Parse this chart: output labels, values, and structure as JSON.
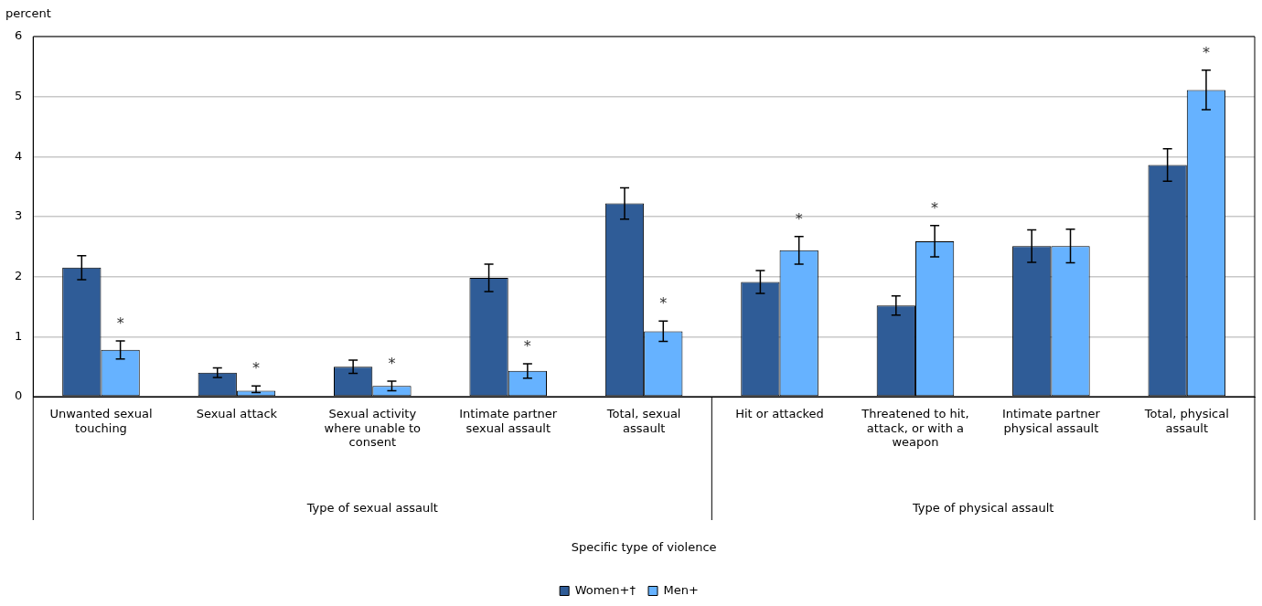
{
  "chart_data": {
    "type": "bar",
    "ylabel": "percent",
    "categories": [
      "Unwanted sexual touching",
      "Sexual attack",
      "Sexual activity where unable to consent",
      "Intimate partner sexual assault",
      "Total, sexual assault",
      "Hit or attacked",
      "Threatened to hit, attack, or with a weapon",
      "Intimate partner physical assault",
      "Total, physical assault"
    ],
    "series": [
      {
        "name": "Women+†",
        "color": "#2f5c97",
        "values": [
          2.15,
          0.4,
          0.5,
          1.98,
          3.22,
          1.91,
          1.52,
          2.51,
          3.86
        ],
        "errors": [
          0.2,
          0.08,
          0.11,
          0.23,
          0.26,
          0.19,
          0.16,
          0.27,
          0.27
        ]
      },
      {
        "name": "Men+",
        "color": "#66b2ff",
        "values": [
          0.78,
          0.1,
          0.18,
          0.43,
          1.09,
          2.44,
          2.59,
          2.51,
          5.11
        ],
        "errors": [
          0.15,
          [
            0.07,
            0.18
          ],
          0.08,
          0.12,
          0.17,
          0.23,
          0.26,
          0.28,
          0.33
        ]
      }
    ],
    "ylim": [
      0,
      6
    ],
    "yticks": [
      0,
      1,
      2,
      3,
      4,
      5,
      6
    ],
    "grid": "y",
    "legend": "bottom",
    "annotations": [
      {
        "text": "*",
        "x": "Unwanted sexual touching",
        "y": 0.78
      },
      {
        "text": "*",
        "x": "Sexual attack",
        "y": 0.1
      },
      {
        "text": "*",
        "x": "Sexual activity where unable to consent",
        "y": 0.18
      },
      {
        "text": "*",
        "x": "Intimate partner sexual assault",
        "y": 0.43
      },
      {
        "text": "*",
        "x": "Total, sexual assault",
        "y": 1.09
      },
      {
        "text": "*",
        "x": "Hit or attacked",
        "y": 2.44
      },
      {
        "text": "*",
        "x": "Threatened to hit, attack, or with a weapon",
        "y": 2.59
      },
      {
        "text": "*",
        "x": "Total, physical assault",
        "y": 5.11
      },
      "Type of sexual assault",
      "Type of physical assault",
      "Specific type of violence"
    ]
  }
}
